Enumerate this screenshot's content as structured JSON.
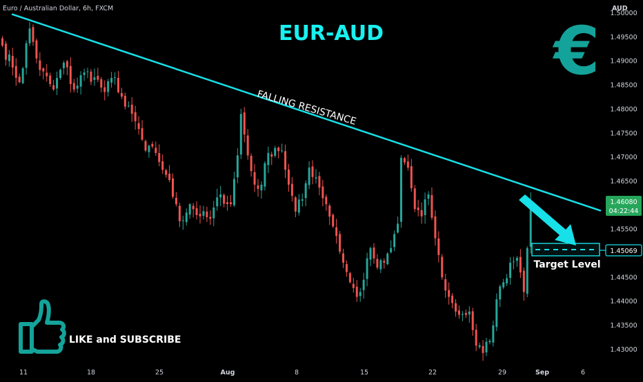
{
  "header": {
    "symbol_title": "Euro / Australian Dollar, 6h, FXCM"
  },
  "overlay": {
    "title": "EUR-AUD",
    "trendline_label": "FALLING RESISTANCE",
    "target_label": "Target Level",
    "cta": "LIKE and SUBSCRIBE",
    "currency_symbol": "€",
    "accent_color": "#17e0e8",
    "title_color": "#19f0f0",
    "euro_color": "#14a39a"
  },
  "price_axis": {
    "currency": "AUD",
    "tick_labels": [
      "1.50000",
      "1.49500",
      "1.49000",
      "1.48500",
      "1.48000",
      "1.47500",
      "1.47000",
      "1.46500",
      "1.46000",
      "1.45500",
      "1.45000",
      "1.44500",
      "1.44000",
      "1.43500",
      "1.43000"
    ],
    "current_price": "1.46080",
    "countdown": "04:22:44",
    "target_price": "1.45069"
  },
  "time_axis": {
    "tick_labels": [
      "11",
      "18",
      "25",
      "Aug",
      "8",
      "15",
      "22",
      "29",
      "Sep",
      "6"
    ]
  },
  "chart_data": {
    "type": "candlestick",
    "instrument": "EURAUD",
    "ylim": [
      1.4285,
      1.501
    ],
    "up_color": "#26a69a",
    "down_color": "#ef5350",
    "trendline": {
      "from": 1.4989,
      "to": 1.4587
    },
    "target_level": 1.45069,
    "current_price": 1.4608,
    "anchors": [
      [
        0,
        1.4925
      ],
      [
        3,
        1.488
      ],
      [
        5,
        1.485
      ],
      [
        8,
        1.496
      ],
      [
        11,
        1.4875
      ],
      [
        15,
        1.4835
      ],
      [
        18,
        1.489
      ],
      [
        21,
        1.4835
      ],
      [
        24,
        1.487
      ],
      [
        27,
        1.486
      ],
      [
        30,
        1.483
      ],
      [
        33,
        1.486
      ],
      [
        36,
        1.48
      ],
      [
        39,
        1.477
      ],
      [
        42,
        1.471
      ],
      [
        45,
        1.4705
      ],
      [
        48,
        1.466
      ],
      [
        51,
        1.46
      ],
      [
        52,
        1.4565
      ],
      [
        55,
        1.46
      ],
      [
        58,
        1.4575
      ],
      [
        61,
        1.457
      ],
      [
        64,
        1.462
      ],
      [
        67,
        1.46
      ],
      [
        69,
        1.47
      ],
      [
        70,
        1.4785
      ],
      [
        72,
        1.47
      ],
      [
        74,
        1.464
      ],
      [
        76,
        1.464
      ],
      [
        78,
        1.4705
      ],
      [
        80,
        1.4715
      ],
      [
        82,
        1.471
      ],
      [
        84,
        1.464
      ],
      [
        86,
        1.4585
      ],
      [
        88,
        1.461
      ],
      [
        90,
        1.4675
      ],
      [
        92,
        1.4655
      ],
      [
        95,
        1.46
      ],
      [
        98,
        1.4535
      ],
      [
        100,
        1.448
      ],
      [
        102,
        1.444
      ],
      [
        104,
        1.441
      ],
      [
        106,
        1.4445
      ],
      [
        108,
        1.451
      ],
      [
        110,
        1.447
      ],
      [
        112,
        1.448
      ],
      [
        114,
        1.451
      ],
      [
        116,
        1.456
      ],
      [
        117,
        1.4695
      ],
      [
        119,
        1.4675
      ],
      [
        121,
        1.459
      ],
      [
        123,
        1.4575
      ],
      [
        125,
        1.462
      ],
      [
        127,
        1.453
      ],
      [
        129,
        1.445
      ],
      [
        131,
        1.441
      ],
      [
        133,
        1.438
      ],
      [
        135,
        1.4375
      ],
      [
        137,
        1.438
      ],
      [
        139,
        1.431
      ],
      [
        141,
        1.4295
      ],
      [
        143,
        1.432
      ],
      [
        145,
        1.4405
      ],
      [
        147,
        1.444
      ],
      [
        149,
        1.448
      ],
      [
        151,
        1.449
      ],
      [
        152,
        1.446
      ],
      [
        153,
        1.442
      ],
      [
        154,
        1.451
      ],
      [
        155,
        1.4608
      ]
    ],
    "series": [
      {
        "values": []
      }
    ]
  }
}
